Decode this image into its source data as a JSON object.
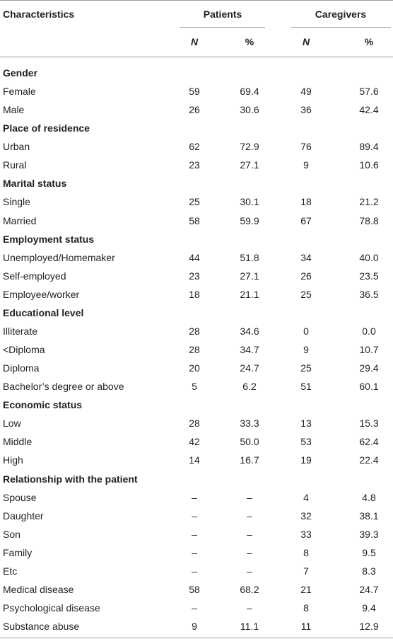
{
  "table": {
    "header": {
      "characteristics": "Characteristics",
      "groups": [
        "Patients",
        "Caregivers"
      ],
      "subcolumns": [
        "N",
        "%",
        "N",
        "%"
      ]
    },
    "sections": [
      {
        "title": "Gender",
        "rows": [
          [
            "Female",
            "59",
            "69.4",
            "49",
            "57.6"
          ],
          [
            "Male",
            "26",
            "30.6",
            "36",
            "42.4"
          ]
        ]
      },
      {
        "title": "Place of residence",
        "rows": [
          [
            "Urban",
            "62",
            "72.9",
            "76",
            "89.4"
          ],
          [
            "Rural",
            "23",
            "27.1",
            "9",
            "10.6"
          ]
        ]
      },
      {
        "title": "Marital status",
        "rows": [
          [
            "Single",
            "25",
            "30.1",
            "18",
            "21.2"
          ],
          [
            "Married",
            "58",
            "59.9",
            "67",
            "78.8"
          ]
        ]
      },
      {
        "title": "Employment status",
        "rows": [
          [
            "Unemployed/Homemaker",
            "44",
            "51.8",
            "34",
            "40.0"
          ],
          [
            "Self-employed",
            "23",
            "27.1",
            "26",
            "23.5"
          ],
          [
            "Employee/worker",
            "18",
            "21.1",
            "25",
            "36.5"
          ]
        ]
      },
      {
        "title": "Educational level",
        "rows": [
          [
            "Illiterate",
            "28",
            "34.6",
            "0",
            "0.0"
          ],
          [
            "<Diploma",
            "28",
            "34.7",
            "9",
            "10.7"
          ],
          [
            "Diploma",
            "20",
            "24.7",
            "25",
            "29.4"
          ],
          [
            "Bachelor’s degree or above",
            "5",
            "6.2",
            "51",
            "60.1"
          ]
        ]
      },
      {
        "title": "Economic status",
        "rows": [
          [
            "Low",
            "28",
            "33.3",
            "13",
            "15.3"
          ],
          [
            "Middle",
            "42",
            "50.0",
            "53",
            "62.4"
          ],
          [
            "High",
            "14",
            "16.7",
            "19",
            "22.4"
          ]
        ]
      },
      {
        "title": "Relationship with the patient",
        "rows": [
          [
            "Spouse",
            "–",
            "–",
            "4",
            "4.8"
          ],
          [
            "Daughter",
            "–",
            "–",
            "32",
            "38.1"
          ],
          [
            "Son",
            "–",
            "–",
            "33",
            "39.3"
          ],
          [
            "Family",
            "–",
            "–",
            "8",
            "9.5"
          ],
          [
            "Etc",
            "–",
            "–",
            "7",
            "8.3"
          ],
          [
            "Medical disease",
            "58",
            "68.2",
            "21",
            "24.7"
          ],
          [
            "Psychological disease",
            "–",
            "–",
            "8",
            "9.4"
          ],
          [
            "Substance abuse",
            "9",
            "11.1",
            "11",
            "12.9"
          ]
        ]
      }
    ]
  }
}
